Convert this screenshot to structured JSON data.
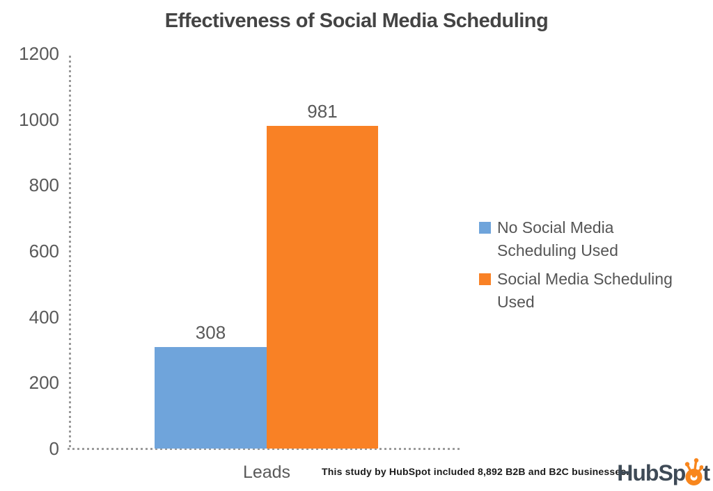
{
  "chart_data": {
    "type": "bar",
    "title": "Effectiveness of Social Media Scheduling",
    "categories": [
      "Leads"
    ],
    "series": [
      {
        "name": "No Social Media Scheduling Used",
        "values": [
          308
        ],
        "color": "#6FA4DB"
      },
      {
        "name": "Social Media Scheduling Used",
        "values": [
          981
        ],
        "color": "#F98125"
      }
    ],
    "xlabel": "Leads",
    "ylabel": "",
    "ylim": [
      0,
      1200
    ],
    "yticks": [
      0,
      200,
      400,
      600,
      800,
      1000,
      1200
    ],
    "grid": "off",
    "legend_position": "right",
    "axis_line_style": "dotted"
  },
  "legend": {
    "items": [
      {
        "line1": "No Social Media",
        "line2": "Scheduling Used"
      },
      {
        "line1": "Social Media Scheduling",
        "line2": "Used"
      }
    ]
  },
  "footnote": "This study by HubSpot included 8,892 B2B and B2C businesses.",
  "logo": {
    "text_before": "HubSp",
    "text_after": "t",
    "alt": "HubSpot"
  },
  "colors": {
    "bar_blue": "#6FA4DB",
    "bar_orange": "#F98125",
    "axis_text": "#595959",
    "title_text": "#444444",
    "dotted_line": "#9A9A9A",
    "footnote_text": "#1A1A1A",
    "logo_text": "#3E4A56",
    "logo_orange": "#F8861D"
  }
}
